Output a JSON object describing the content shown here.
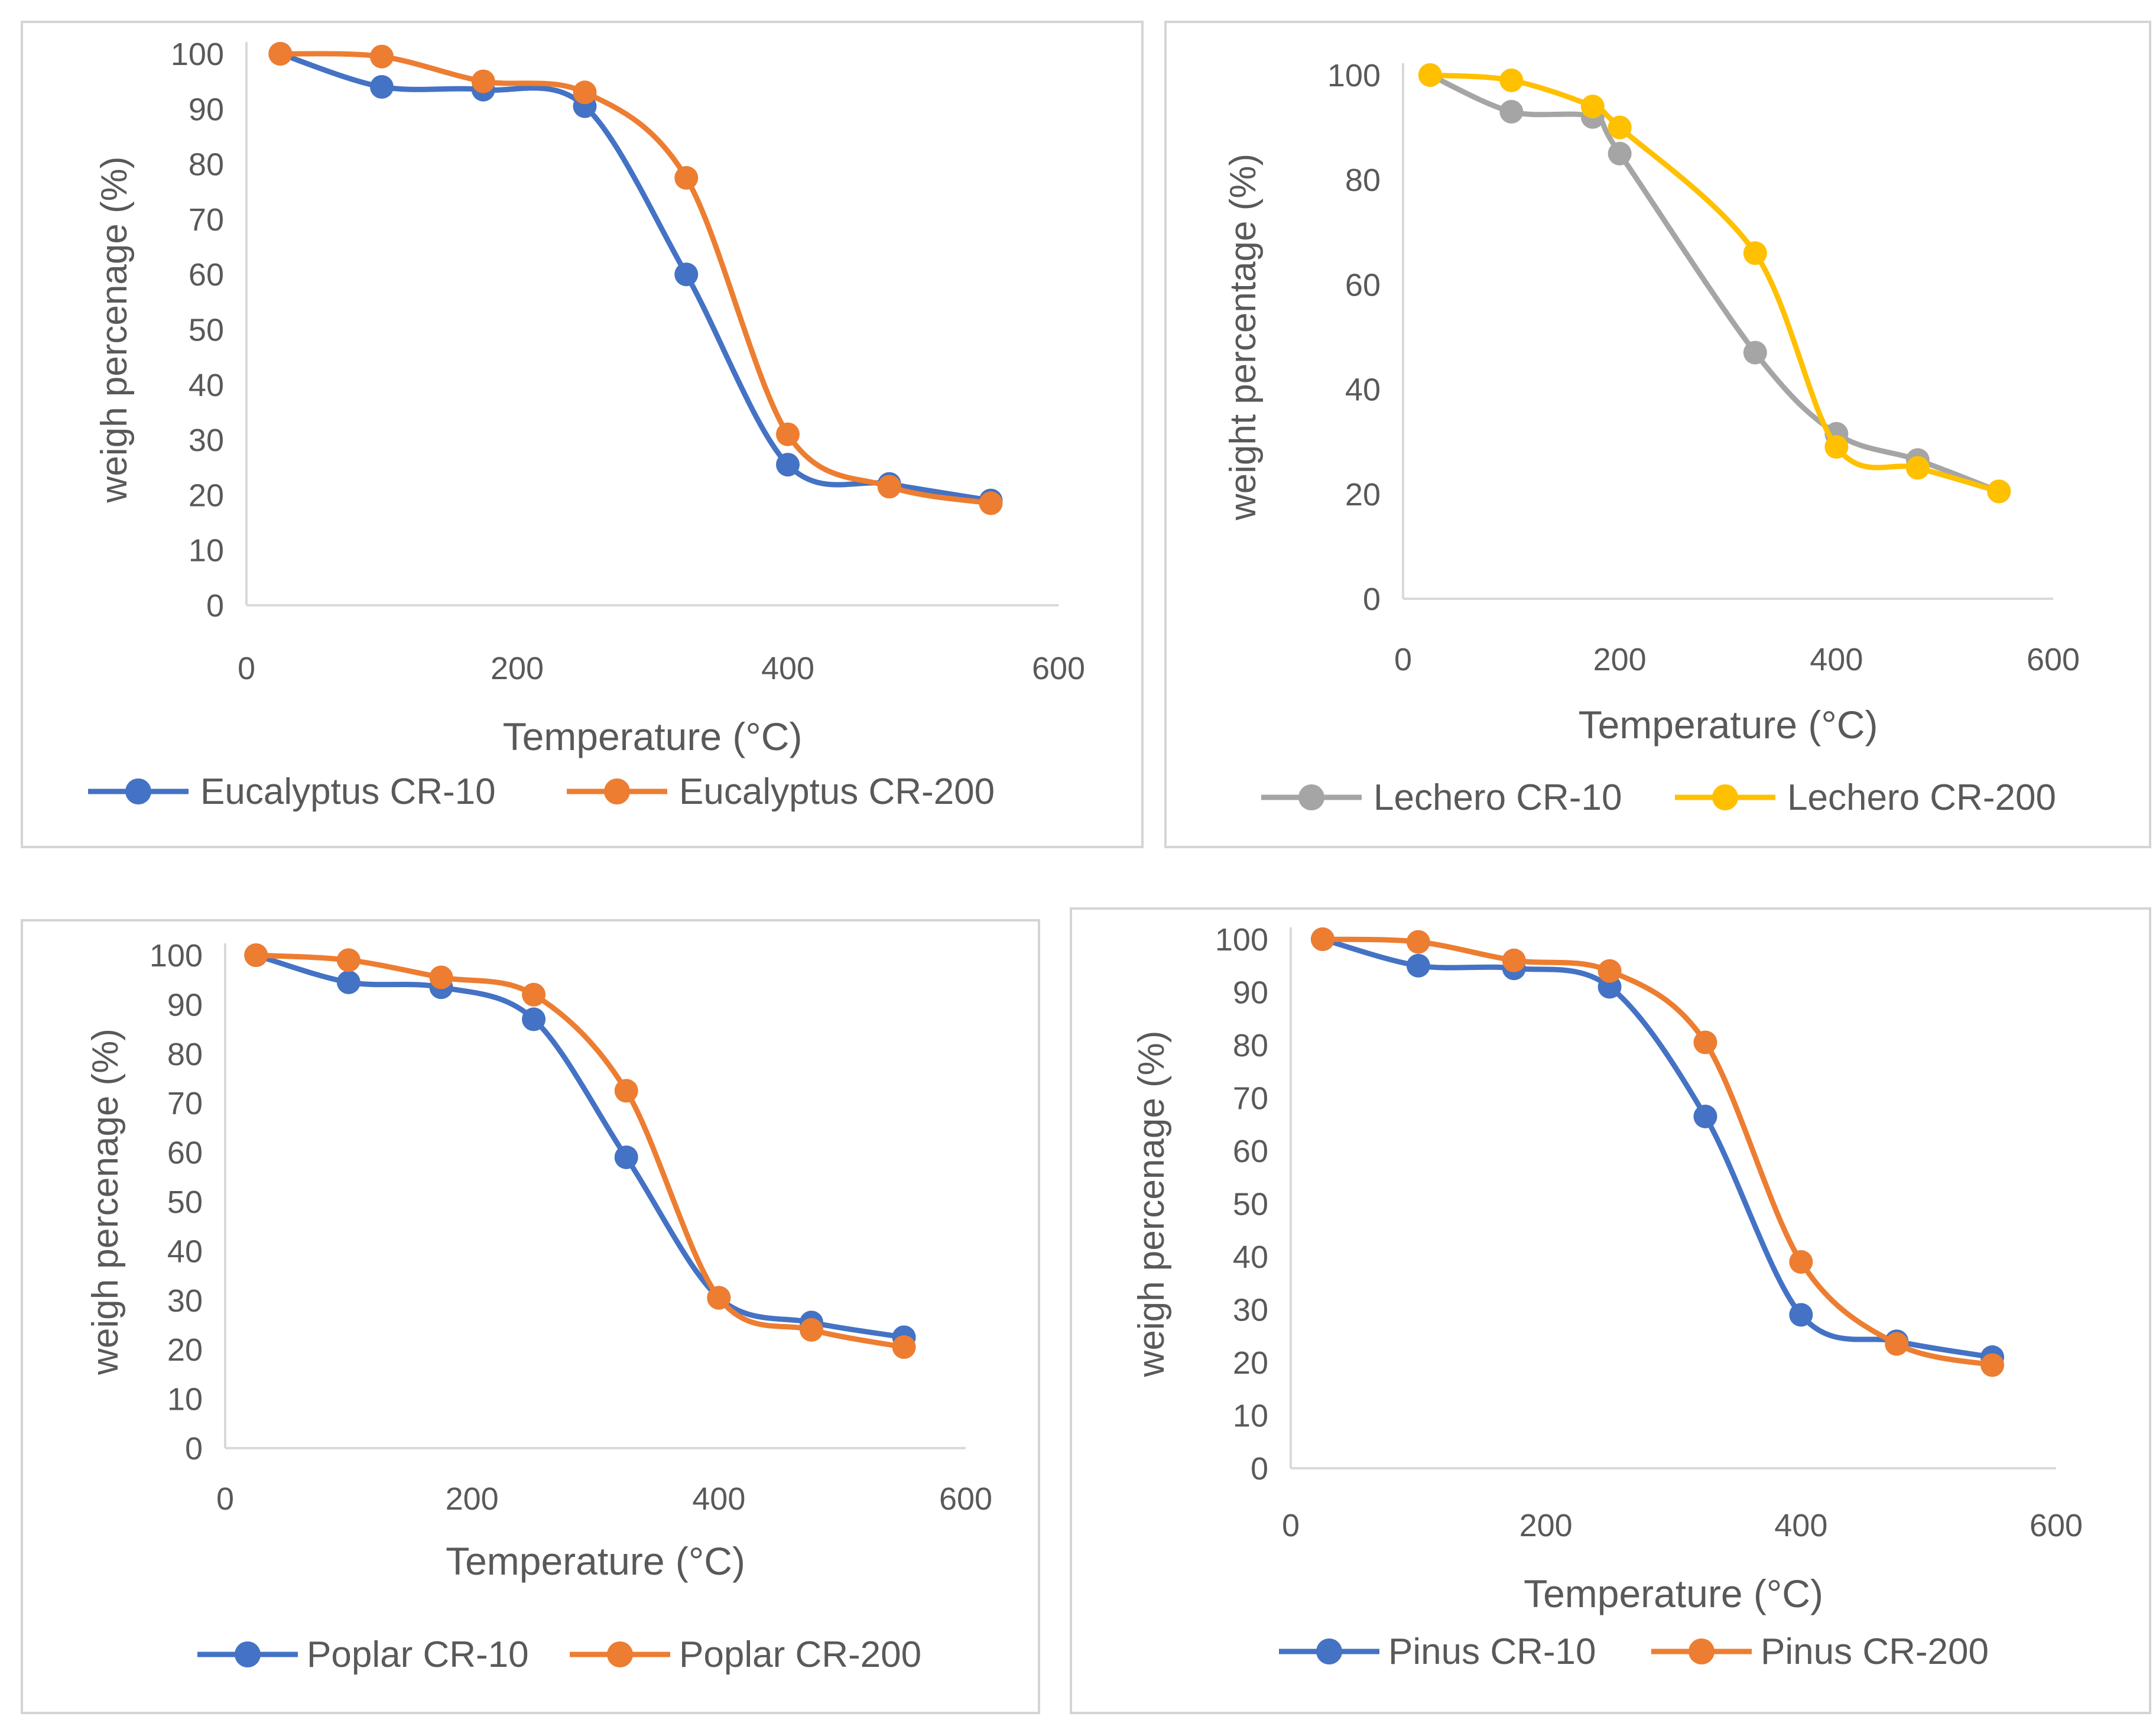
{
  "chart_data": [
    {
      "type": "line",
      "title": "",
      "xlabel": "Temperature (°C)",
      "ylabel": "weigh percenage (%)",
      "xlim": [
        0,
        600
      ],
      "ylim": [
        0,
        100
      ],
      "xticks": [
        0,
        200,
        400,
        600
      ],
      "yticks": [
        0,
        10,
        20,
        30,
        40,
        50,
        60,
        70,
        80,
        90,
        100
      ],
      "legend_position": "bottom",
      "series": [
        {
          "name": "Eucalyptus CR-10",
          "color": "#4472c4",
          "x": [
            25,
            100,
            175,
            250,
            325,
            400,
            475,
            550
          ],
          "y": [
            100,
            94,
            93.5,
            90.5,
            60,
            25.5,
            22,
            19
          ]
        },
        {
          "name": "Eucalyptus CR-200",
          "color": "#ed7d31",
          "x": [
            25,
            100,
            175,
            250,
            325,
            400,
            475,
            550
          ],
          "y": [
            100,
            99.5,
            95,
            93,
            77.5,
            31,
            21.5,
            18.5
          ]
        }
      ]
    },
    {
      "type": "line",
      "title": "",
      "xlabel": "Temperature (°C)",
      "ylabel": "weight percentage (%)",
      "xlim": [
        0,
        600
      ],
      "ylim": [
        0,
        100
      ],
      "xticks": [
        0,
        200,
        400,
        600
      ],
      "yticks": [
        0,
        20,
        40,
        60,
        80,
        100
      ],
      "legend_position": "bottom",
      "series": [
        {
          "name": "Lechero CR-10",
          "color": "#a5a5a5",
          "x": [
            25,
            100,
            175,
            200,
            325,
            400,
            475,
            550
          ],
          "y": [
            100,
            93,
            92,
            85,
            47,
            31.5,
            26.5,
            20.5
          ]
        },
        {
          "name": "Lechero CR-200",
          "color": "#ffc000",
          "x": [
            25,
            100,
            175,
            200,
            325,
            400,
            475,
            550
          ],
          "y": [
            100,
            99,
            94,
            90,
            66,
            29,
            25,
            20.5
          ]
        }
      ]
    },
    {
      "type": "line",
      "title": "",
      "xlabel": "Temperature (°C)",
      "ylabel": "weigh percenage (%)",
      "xlim": [
        0,
        600
      ],
      "ylim": [
        0,
        100
      ],
      "xticks": [
        0,
        200,
        400,
        600
      ],
      "yticks": [
        0,
        10,
        20,
        30,
        40,
        50,
        60,
        70,
        80,
        90,
        100
      ],
      "legend_position": "bottom",
      "series": [
        {
          "name": "Poplar CR-10",
          "color": "#4472c4",
          "x": [
            25,
            100,
            175,
            250,
            325,
            400,
            475,
            550
          ],
          "y": [
            100,
            94.5,
            93.5,
            87,
            59,
            30.5,
            25.5,
            22.5
          ]
        },
        {
          "name": "Poplar CR-200",
          "color": "#ed7d31",
          "x": [
            25,
            100,
            175,
            250,
            325,
            400,
            475,
            550
          ],
          "y": [
            100,
            99,
            95.5,
            92,
            72.5,
            30.5,
            24,
            20.5
          ]
        }
      ]
    },
    {
      "type": "line",
      "title": "",
      "xlabel": "Temperature (°C)",
      "ylabel": "weigh percenage (%)",
      "xlim": [
        0,
        600
      ],
      "ylim": [
        0,
        100
      ],
      "xticks": [
        0,
        200,
        400,
        600
      ],
      "yticks": [
        0,
        10,
        20,
        30,
        40,
        50,
        60,
        70,
        80,
        90,
        100
      ],
      "legend_position": "bottom",
      "series": [
        {
          "name": "Pinus CR-10",
          "color": "#4472c4",
          "x": [
            25,
            100,
            175,
            250,
            325,
            400,
            475,
            550
          ],
          "y": [
            100,
            95,
            94.5,
            91,
            66.5,
            29,
            24,
            21
          ]
        },
        {
          "name": "Pinus CR-200",
          "color": "#ed7d31",
          "x": [
            25,
            100,
            175,
            250,
            325,
            400,
            475,
            550
          ],
          "y": [
            100,
            99.5,
            96,
            94,
            80.5,
            39,
            23.5,
            19.5
          ]
        }
      ]
    }
  ]
}
